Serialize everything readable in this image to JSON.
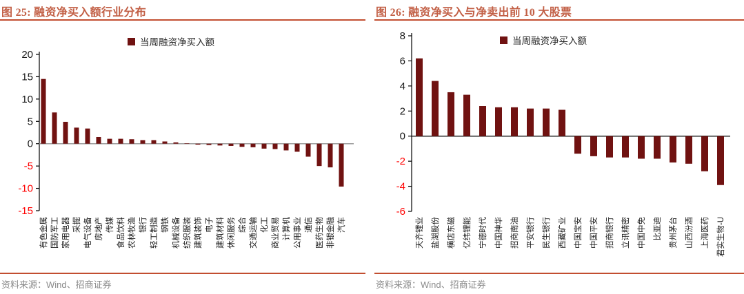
{
  "colors": {
    "title": "#C25F45",
    "rule": "#C24E30",
    "bar": "#701211",
    "tick": "#1A1A1A",
    "negative_tick": "#FF0000",
    "category_label": "#1A1A1A",
    "source_text": "#8A8A8A",
    "zero_line_left": "#999999",
    "zero_line_right": "#262626",
    "axis": "#000000"
  },
  "chart_data": [
    {
      "type": "bar",
      "title": "图 25:  融资净买入额行业分布",
      "legend": [
        "当周融资净买入额"
      ],
      "categories": [
        "有色金属",
        "国防军工",
        "家用电器",
        "采掘",
        "电气设备",
        "房地产",
        "传媒",
        "食品饮料",
        "农林牧渔",
        "银行",
        "轻工制造",
        "钢铁",
        "机械设备",
        "纺织服装",
        "建筑装饰",
        "电子",
        "建筑材料",
        "休闲服务",
        "综合",
        "交通运输",
        "化工",
        "商业贸易",
        "计算机",
        "公用事业",
        "通信",
        "医药生物",
        "非银金融",
        "汽车"
      ],
      "values": [
        14.5,
        7.0,
        4.9,
        3.6,
        3.4,
        1.5,
        1.1,
        1.1,
        1.0,
        0.8,
        0.8,
        0.5,
        0.3,
        0.1,
        -0.2,
        -0.3,
        -0.4,
        -0.5,
        -0.7,
        -0.8,
        -1.1,
        -1.2,
        -1.5,
        -1.8,
        -2.9,
        -5.0,
        -5.3,
        -9.6
      ],
      "ylim": [
        -15,
        20
      ],
      "yticks": [
        20,
        15,
        10,
        5,
        0,
        -5,
        -10,
        -15
      ],
      "xlabel": "",
      "ylabel": "",
      "legend_position": "top",
      "grid": false,
      "source": "资料来源：Wind、招商证券"
    },
    {
      "type": "bar",
      "title": "图 26:  融资净买入与净卖出前 10 大股票",
      "legend": [
        "当周融资净买入额"
      ],
      "categories": [
        "天齐锂业",
        "盐湖股份",
        "横店东磁",
        "亿纬锂能",
        "宁德时代",
        "中国神华",
        "招商南油",
        "平安银行",
        "民生银行",
        "西藏矿业",
        "中国宝安",
        "中国平安",
        "招商银行",
        "立讯精密",
        "中国中免",
        "比亚迪",
        "贵州茅台",
        "山西汾酒",
        "上海医药",
        "君实生物-U"
      ],
      "values": [
        6.2,
        4.4,
        3.5,
        3.3,
        2.4,
        2.3,
        2.3,
        2.2,
        2.2,
        2.1,
        -1.4,
        -1.6,
        -1.7,
        -1.7,
        -1.8,
        -1.8,
        -2.1,
        -2.2,
        -2.8,
        -3.9
      ],
      "ylim": [
        -6,
        8
      ],
      "yticks": [
        8,
        6,
        4,
        2,
        0,
        -2,
        -4,
        -6
      ],
      "xlabel": "",
      "ylabel": "",
      "legend_position": "top",
      "grid": false,
      "source": "资料来源：Wind、招商证券"
    }
  ]
}
